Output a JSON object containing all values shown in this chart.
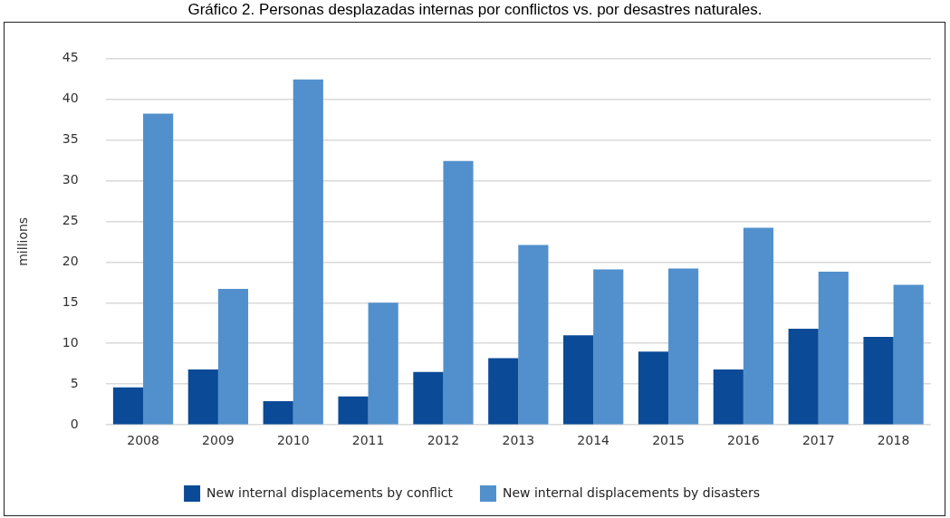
{
  "chart_data": {
    "type": "bar",
    "title": "Gráfico 2. Personas desplazadas internas por conflictos vs. por desastres naturales.",
    "ylabel": "millions",
    "categories": [
      "2008",
      "2009",
      "2010",
      "2011",
      "2012",
      "2013",
      "2014",
      "2015",
      "2016",
      "2017",
      "2018"
    ],
    "series": [
      {
        "name": "New internal displacements by conflict",
        "color": "#0a4a97",
        "values": [
          4.6,
          6.8,
          2.9,
          3.5,
          6.5,
          8.2,
          11.0,
          9.0,
          6.8,
          11.8,
          10.8
        ]
      },
      {
        "name": "New internal displacements by disasters",
        "color": "#5190cc",
        "values": [
          38.2,
          16.7,
          42.4,
          15.0,
          32.4,
          22.1,
          19.1,
          19.2,
          24.2,
          18.8,
          17.2
        ]
      }
    ],
    "ylim": [
      0,
      45
    ],
    "yticks": [
      0,
      5,
      10,
      15,
      20,
      25,
      30,
      35,
      40,
      45
    ],
    "grid": "y",
    "legend": "bottom"
  }
}
